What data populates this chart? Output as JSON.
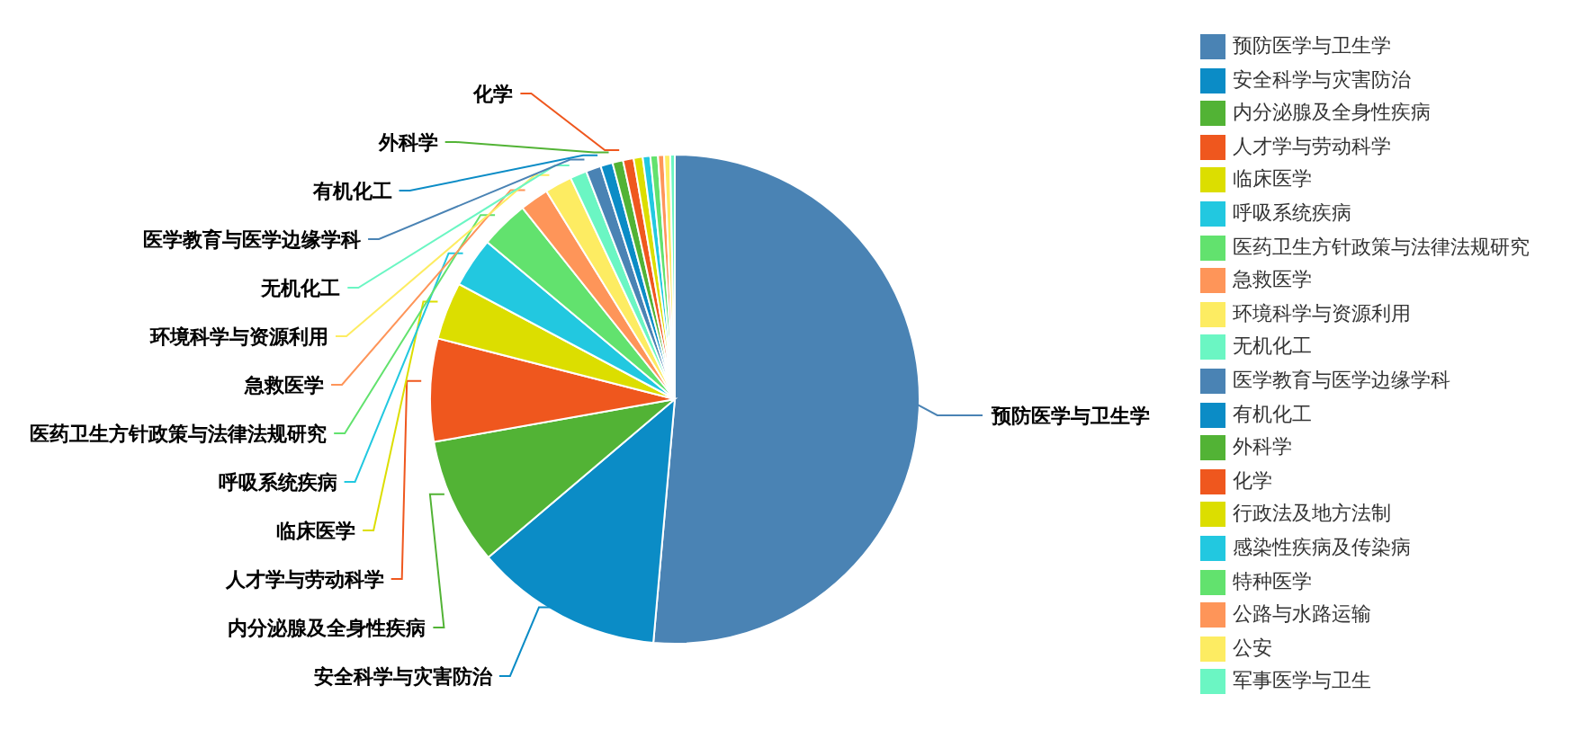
{
  "chart_data": {
    "type": "pie",
    "categories": [
      "预防医学与卫生学",
      "安全科学与灾害防治",
      "内分泌腺及全身性疾病",
      "人才学与劳动科学",
      "临床医学",
      "呼吸系统疾病",
      "医药卫生方针政策与法律法规研究",
      "急救医学",
      "环境科学与资源利用",
      "无机化工",
      "医学教育与医学边缘学科",
      "有机化工",
      "外科学",
      "化学",
      "行政法及地方法制",
      "感染性疾病及传染病",
      "特种医学",
      "公路与水路运输",
      "公安",
      "军事医学与卫生"
    ],
    "values": [
      51.4,
      12.4,
      8.4,
      6.8,
      3.8,
      3.3,
      3.2,
      1.9,
      1.8,
      1.1,
      1.0,
      0.8,
      0.7,
      0.7,
      0.6,
      0.5,
      0.5,
      0.4,
      0.4,
      0.3
    ],
    "colors": [
      "#4a83b4",
      "#0b8cc6",
      "#52b335",
      "#ef571e",
      "#dcde00",
      "#22c8e0",
      "#62e26e",
      "#fe9559",
      "#fdec62",
      "#6bf6c3",
      "#4a83b4",
      "#0b8cc6",
      "#52b335",
      "#ef571e",
      "#dcde00",
      "#22c8e0",
      "#62e26e",
      "#fe9559",
      "#fdec62",
      "#6bf6c3"
    ],
    "legend": "right"
  }
}
